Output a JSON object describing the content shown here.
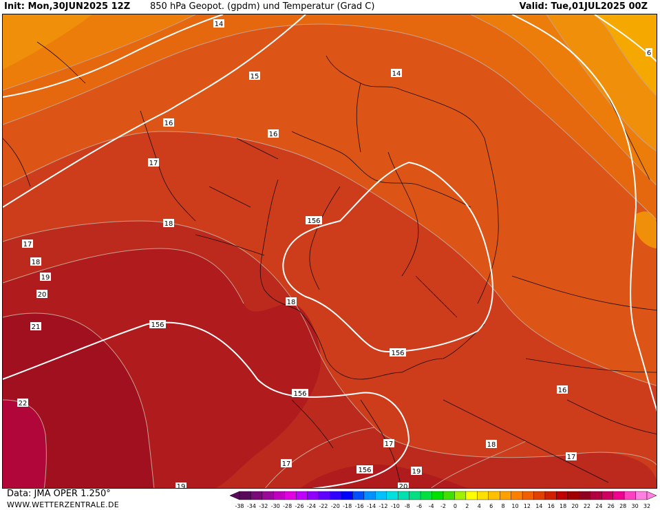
{
  "header": {
    "init": "Init: Mon,30JUN2025 12Z",
    "title": "850 hPa Geopot. (gpdm) und Temperatur (Grad C)",
    "valid": "Valid: Tue,01JUL2025 00Z"
  },
  "footer": {
    "source": "Data: JMA OPER 1.250°",
    "site": "WWW.WETTERZENTRALE.DE"
  },
  "colors": {
    "t6": "#f5a800",
    "t8": "#f0900a",
    "t10": "#ec7d0a",
    "t12": "#e6680e",
    "t14": "#dd5516",
    "t16": "#cd3d1c",
    "t18": "#bc2a1e",
    "t20": "#b01c1e",
    "t22": "#a0101e",
    "t24": "#b0063a"
  },
  "temperature_labels": [
    {
      "id": "t14a",
      "text": "14"
    },
    {
      "id": "t14b",
      "text": "14"
    },
    {
      "id": "t6",
      "text": "6"
    },
    {
      "id": "t16a",
      "text": "16"
    },
    {
      "id": "t16b",
      "text": "16"
    },
    {
      "id": "t17a",
      "text": "17"
    },
    {
      "id": "t17b",
      "text": "17"
    },
    {
      "id": "t18a",
      "text": "18"
    },
    {
      "id": "t18b",
      "text": "18"
    },
    {
      "id": "t18c",
      "text": "18"
    },
    {
      "id": "t19a",
      "text": "19"
    },
    {
      "id": "t20a",
      "text": "20"
    },
    {
      "id": "t21",
      "text": "21"
    },
    {
      "id": "t22",
      "text": "22"
    },
    {
      "id": "t16c",
      "text": "16"
    },
    {
      "id": "t17c",
      "text": "17"
    },
    {
      "id": "t17d",
      "text": "17"
    },
    {
      "id": "t17e",
      "text": "17"
    },
    {
      "id": "t18d",
      "text": "18"
    },
    {
      "id": "t19b",
      "text": "19"
    },
    {
      "id": "t20b",
      "text": "20"
    },
    {
      "id": "t19c",
      "text": "19"
    }
  ],
  "geopotential_labels": [
    {
      "id": "g15",
      "text": "15"
    },
    {
      "id": "g156a",
      "text": "156"
    },
    {
      "id": "g156b",
      "text": "156"
    },
    {
      "id": "g156c",
      "text": "156"
    },
    {
      "id": "g156d",
      "text": "156"
    },
    {
      "id": "g156e",
      "text": "156"
    }
  ],
  "legend": {
    "ticks": [
      "-38",
      "-36",
      "-34",
      "-32",
      "-30",
      "-28",
      "-26",
      "-24",
      "-22",
      "-20",
      "-18",
      "-16",
      "-14",
      "-12",
      "-10",
      "-8",
      "-6",
      "-4",
      "-2",
      "0",
      "2",
      "4",
      "6",
      "8",
      "10",
      "12",
      "14",
      "16",
      "18",
      "20",
      "22",
      "24",
      "26",
      "28",
      "30",
      "32"
    ],
    "tick_labels": [
      "-38",
      "-34",
      "-32",
      "-30",
      "-28",
      "-26",
      "-24",
      "-22",
      "-20",
      "-18",
      "-16",
      "-14",
      "-12",
      "-10",
      "-8",
      "-6",
      "-4",
      "-2",
      "0",
      "2",
      "4",
      "6",
      "8",
      "10",
      "12",
      "14",
      "16",
      "18",
      "20",
      "22",
      "24",
      "26",
      "28",
      "30",
      "32"
    ],
    "colors": [
      "#5a0a5a",
      "#7a0a7a",
      "#9a0a9a",
      "#c000c0",
      "#e000e0",
      "#c000ff",
      "#9000ff",
      "#6000ff",
      "#3000ff",
      "#0000ff",
      "#0050ff",
      "#0090ff",
      "#00c0ff",
      "#00e0e0",
      "#00e0b0",
      "#00e080",
      "#00e040",
      "#00e000",
      "#40e000",
      "#a0f000",
      "#ffff00",
      "#ffe000",
      "#ffc000",
      "#ffa000",
      "#ff8000",
      "#f06000",
      "#e04000",
      "#d02000",
      "#c00000",
      "#a00000",
      "#900020",
      "#b00040",
      "#d00060",
      "#f00090",
      "#ff40c0",
      "#ff80e0"
    ]
  }
}
